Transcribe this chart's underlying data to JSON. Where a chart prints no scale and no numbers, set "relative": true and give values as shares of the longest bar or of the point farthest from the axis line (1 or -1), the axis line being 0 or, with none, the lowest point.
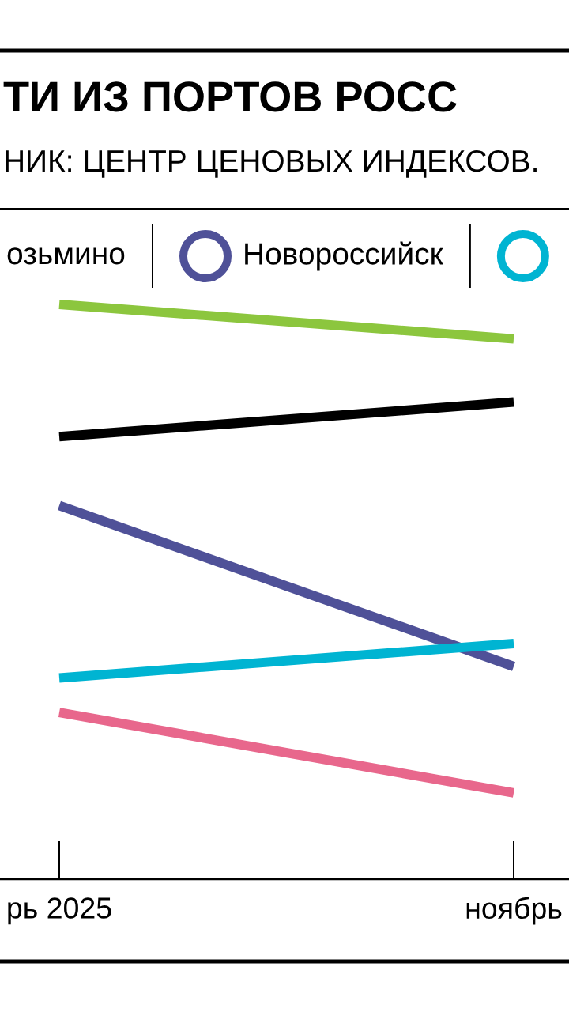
{
  "chart_data": {
    "type": "line",
    "title": "ТИ ИЗ ПОРТОВ РОСС",
    "subtitle": "НИК: ЦЕНТР ЦЕНОВЫХ ИНДЕКСОВ.",
    "annotations": [
      "озьмино"
    ],
    "categories": [
      "рь 2025",
      "ноябрь"
    ],
    "relative": true,
    "legend": "top",
    "series": [
      {
        "color": "#8cc63e",
        "values": [
          1.0,
          0.94
        ]
      },
      {
        "color": "#000000",
        "values": [
          0.77,
          0.83
        ]
      },
      {
        "name": "Новороссийск",
        "color": "#4f5198",
        "values": [
          0.65,
          0.37
        ]
      },
      {
        "name": null,
        "color": "#00b4d2",
        "values": [
          0.35,
          0.41
        ]
      },
      {
        "color": "#e8678c",
        "values": [
          0.29,
          0.15
        ]
      }
    ]
  }
}
